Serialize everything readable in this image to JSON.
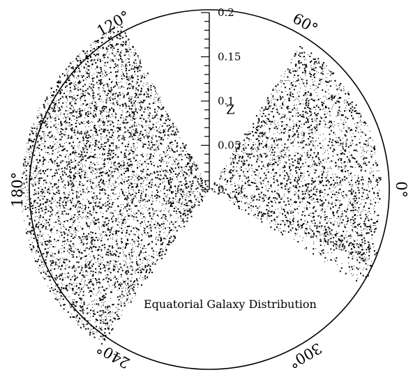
{
  "chart_data": {
    "type": "scatter",
    "subtype": "polar-wedge",
    "title": "Equatorial Galaxy Distribution",
    "radial_axis": {
      "label": "Z",
      "range": [
        0,
        0.2
      ],
      "ticks": [
        {
          "value": 0,
          "label": "0"
        },
        {
          "value": 0.05,
          "label": "0.05"
        },
        {
          "value": 0.1,
          "label": "0.1"
        },
        {
          "value": 0.15,
          "label": "0.15"
        },
        {
          "value": 0.2,
          "label": "0.2"
        }
      ],
      "minor_tick_step": 0.01
    },
    "angular_axis": {
      "unit": "degrees",
      "labels": [
        {
          "angle": 0,
          "text": "0°"
        },
        {
          "angle": 60,
          "text": "60°"
        },
        {
          "angle": 120,
          "text": "120°"
        },
        {
          "angle": 180,
          "text": "180°"
        },
        {
          "angle": 240,
          "text": "240°"
        },
        {
          "angle": 300,
          "text": "300°"
        }
      ]
    },
    "series": [
      {
        "angle_range": [
          -25,
          58
        ],
        "z_range": [
          0.0,
          0.19
        ],
        "density": "moderate"
      },
      {
        "angle_range": [
          -32,
          -18
        ],
        "z_range": [
          0.02,
          0.2
        ],
        "density": "sparse"
      },
      {
        "angle_range": [
          118,
          235
        ],
        "z_range": [
          0.0,
          0.21
        ],
        "density": "high"
      }
    ],
    "point_color": "#000000",
    "grid": false
  }
}
